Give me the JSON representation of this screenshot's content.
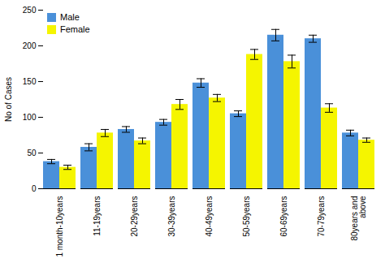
{
  "chart_data": {
    "type": "bar",
    "categories": [
      "1 month-10years",
      "11-19years",
      "20-29years",
      "30-39years",
      "40-49years",
      "50-59years",
      "60-69years",
      "70-79years",
      "80years and\nabove"
    ],
    "series": [
      {
        "name": "Male",
        "color": "#4A90D9",
        "values": [
          38,
          58,
          83,
          93,
          148,
          105,
          215,
          210,
          78
        ],
        "errors": [
          3,
          5,
          4,
          4,
          6,
          4,
          8,
          5,
          4
        ]
      },
      {
        "name": "Female",
        "color": "#F5F500",
        "values": [
          30,
          78,
          67,
          118,
          127,
          188,
          178,
          113,
          68
        ],
        "errors": [
          3,
          5,
          4,
          7,
          5,
          7,
          9,
          6,
          3
        ]
      }
    ],
    "ylabel": "No of Cases",
    "ylim": [
      0,
      250
    ],
    "yticks": [
      0,
      50,
      100,
      150,
      200,
      250
    ],
    "legend": "upper left",
    "grid": false
  }
}
